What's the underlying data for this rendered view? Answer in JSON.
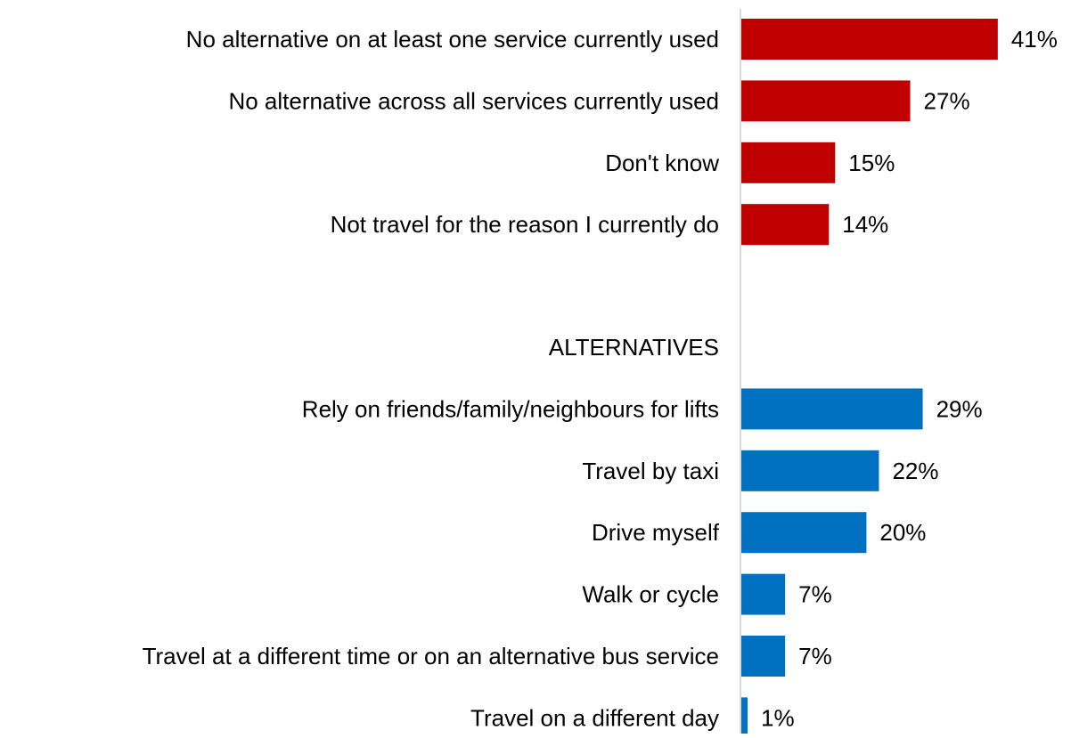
{
  "chart_data": {
    "type": "bar",
    "orientation": "horizontal",
    "title": "",
    "xlabel": "",
    "ylabel": "",
    "xlim": [
      0,
      45
    ],
    "grid": false,
    "legend": "none",
    "colors": {
      "no_alternative": "#c00000",
      "alternatives": "#0070c0",
      "axis": "#d9d9d9"
    },
    "groups": [
      {
        "heading": "",
        "color": "#c00000",
        "categories": [
          "No alternative on at least one service currently used",
          "No alternative across all services currently used",
          "Don't know",
          "Not travel for the reason I currently do"
        ],
        "values": [
          41,
          27,
          15,
          14
        ],
        "labels": [
          "41%",
          "27%",
          "15%",
          "14%"
        ]
      },
      {
        "heading": "ALTERNATIVES",
        "color": "#0070c0",
        "categories": [
          "Rely on friends/family/neighbours for lifts",
          "Travel by taxi",
          "Drive myself",
          "Walk or cycle",
          "Travel at a different time or on an alternative bus service",
          "Travel on a different day"
        ],
        "values": [
          29,
          22,
          20,
          7,
          7,
          1
        ],
        "labels": [
          "29%",
          "22%",
          "20%",
          "7%",
          "7%",
          "1%"
        ]
      }
    ]
  }
}
